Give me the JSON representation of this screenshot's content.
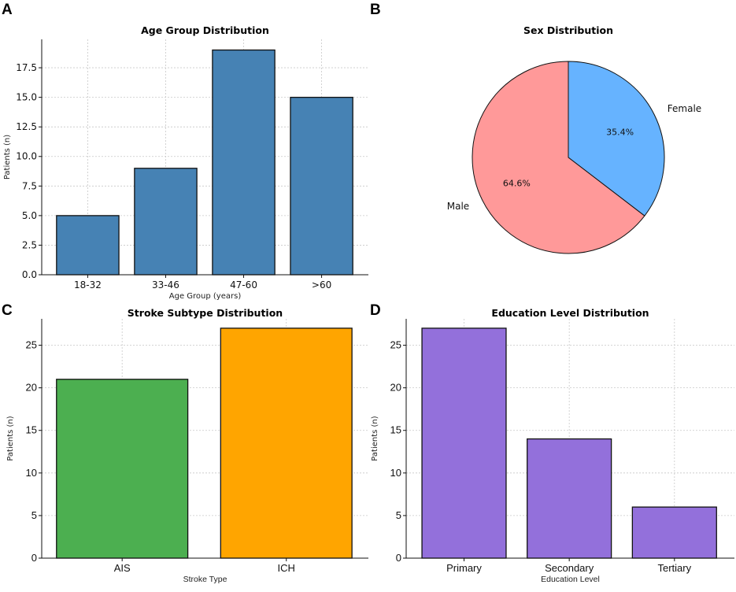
{
  "panels": [
    "A",
    "B",
    "C",
    "D"
  ],
  "chart_data": [
    {
      "type": "bar",
      "title": "Age Group Distribution",
      "xlabel": "Age Group (years)",
      "ylabel": "Patients (n)",
      "categories": [
        "18-32",
        "33-46",
        "47-60",
        ">60"
      ],
      "values": [
        5,
        9,
        19,
        15
      ],
      "ylim": [
        0,
        19.9
      ],
      "yticks": [
        0,
        2.5,
        5,
        7.5,
        10,
        12.5,
        15,
        17.5
      ],
      "ytick_labels": [
        "0.0",
        "2.5",
        "5.0",
        "7.5",
        "10.0",
        "12.5",
        "15.0",
        "17.5"
      ],
      "colors": [
        "#4682b4"
      ],
      "grid": true
    },
    {
      "type": "pie",
      "title": "Sex Distribution",
      "labels": [
        "Female",
        "Male"
      ],
      "values": [
        35.4,
        64.6
      ],
      "pct_labels": [
        "35.4%",
        "64.6%"
      ],
      "colors": [
        "#66b3ff",
        "#ff9999"
      ],
      "start_angle": 90,
      "direction": "clockwise"
    },
    {
      "type": "bar",
      "title": "Stroke Subtype Distribution",
      "xlabel": "Stroke Type",
      "ylabel": "Patients (n)",
      "categories": [
        "AIS",
        "ICH"
      ],
      "values": [
        21,
        27
      ],
      "ylim": [
        0,
        28.1
      ],
      "yticks": [
        0,
        5,
        10,
        15,
        20,
        25
      ],
      "ytick_labels": [
        "0",
        "5",
        "10",
        "15",
        "20",
        "25"
      ],
      "colors": [
        "#4caf50",
        "#ffa500"
      ],
      "grid": true
    },
    {
      "type": "bar",
      "title": "Education Level Distribution",
      "xlabel": "Education Level",
      "ylabel": "Patients (n)",
      "categories": [
        "Primary",
        "Secondary",
        "Tertiary"
      ],
      "values": [
        27,
        14,
        6
      ],
      "ylim": [
        0,
        28.1
      ],
      "yticks": [
        0,
        5,
        10,
        15,
        20,
        25
      ],
      "ytick_labels": [
        "0",
        "5",
        "10",
        "15",
        "20",
        "25"
      ],
      "colors": [
        "#9370db"
      ],
      "grid": true
    }
  ]
}
